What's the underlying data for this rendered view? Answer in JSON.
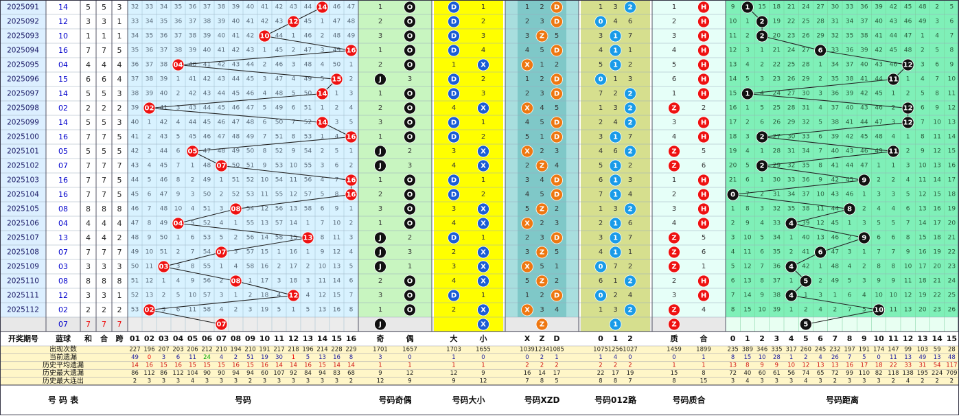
{
  "colors": {
    "issue_bg": "#dcefff",
    "issue_text": "#1a1a66",
    "blue_text": "#0000cc",
    "red_ball": "#ee1111",
    "black_ball": "#111111",
    "blue_ball": "#1a5cd6",
    "orange_ball": "#ee7711",
    "cyan_ball": "#1a9be8",
    "hop_bg": "#d8f2ff",
    "parity_bg": "#c8f5c0",
    "size_bg": "#ffff00",
    "xzd_bg": "#7fc8c8",
    "road_bg": "#d6df8e",
    "prime_bg": "#e6fff8",
    "dist_bg": "#7ff0b8",
    "stat_bg": "#fff6c8"
  },
  "periods": [
    "2025091",
    "2025092",
    "2025093",
    "2025094",
    "2025095",
    "2025096",
    "2025097",
    "2025098",
    "2025099",
    "2025100",
    "2025101",
    "2025102",
    "2025103",
    "2025104",
    "2025105",
    "2025106",
    "2025107",
    "2025108",
    "2025109",
    "2025110",
    "2025111",
    "2025112"
  ],
  "blue_balls": [
    "14",
    "12",
    "10",
    "16",
    "04",
    "15",
    "14",
    "02",
    "14",
    "16",
    "05",
    "07",
    "16",
    "16",
    "08",
    "04",
    "13",
    "07",
    "03",
    "08",
    "12",
    "02"
  ],
  "he": [
    5,
    3,
    1,
    7,
    4,
    6,
    5,
    2,
    5,
    7,
    5,
    7,
    7,
    7,
    8,
    4,
    4,
    7,
    3,
    8,
    3,
    2
  ],
  "hezhi": [
    5,
    3,
    1,
    7,
    4,
    6,
    5,
    2,
    5,
    7,
    5,
    7,
    7,
    7,
    8,
    4,
    4,
    7,
    3,
    8,
    3,
    2
  ],
  "kua": [
    3,
    1,
    1,
    5,
    4,
    4,
    3,
    2,
    3,
    5,
    5,
    7,
    5,
    5,
    8,
    4,
    2,
    7,
    3,
    8,
    1,
    2
  ],
  "forecast": {
    "blue": "07",
    "he": "7",
    "hezhi": "7",
    "kua": "7"
  },
  "hop_numbers": [
    "01",
    "02",
    "03",
    "04",
    "05",
    "06",
    "07",
    "08",
    "09",
    "10",
    "11",
    "12",
    "13",
    "14",
    "15",
    "16"
  ],
  "dist_numbers": [
    "0",
    "1",
    "2",
    "3",
    "4",
    "5",
    "6",
    "7",
    "8",
    "9",
    "10",
    "11",
    "12",
    "13",
    "14",
    "15"
  ],
  "headers": {
    "period": "开奖期号",
    "blue": "蓝球",
    "he": "和",
    "hezhi": "合",
    "kua": "跨",
    "odd": "奇",
    "even": "偶",
    "big": "大",
    "small": "小",
    "x": "X",
    "z": "Z",
    "d": "D",
    "r0": "0",
    "r1": "1",
    "r2": "2",
    "prime": "质",
    "composite": "合"
  },
  "footer": {
    "table": "号  码  表",
    "hop": "号码",
    "parity": "号码奇偶",
    "size": "号码大小",
    "xzd": "号码XZD",
    "road": "号码012路",
    "prime": "号码质合",
    "distance": "号码距离"
  },
  "stats": [
    {
      "label": "出现次数",
      "hop": [
        227,
        196,
        207,
        203,
        206,
        212,
        210,
        194,
        210,
        191,
        217,
        218,
        196,
        214,
        228,
        229
      ],
      "parity": [
        1701,
        1657
      ],
      "size": [
        1703,
        1655
      ],
      "xzd": [
        1039,
        1234,
        1085
      ],
      "road": [
        1075,
        1256,
        1027
      ],
      "prime": [
        1459,
        1899
      ],
      "dist": [
        235,
        389,
        346,
        335,
        317,
        260,
        245,
        232,
        197,
        191,
        174,
        147,
        99,
        103,
        59,
        28
      ]
    },
    {
      "label": "当前遗漏",
      "hop": [
        49,
        0,
        3,
        6,
        11,
        24,
        4,
        2,
        51,
        19,
        30,
        1,
        5,
        13,
        16,
        8
      ],
      "parity": [
        3,
        0
      ],
      "size": [
        1,
        0
      ],
      "xzd": [
        0,
        2,
        1
      ],
      "road": [
        1,
        4,
        0
      ],
      "prime": [
        0,
        1
      ],
      "dist": [
        8,
        15,
        10,
        28,
        1,
        2,
        4,
        26,
        7,
        5,
        0,
        11,
        13,
        49,
        13,
        48
      ]
    },
    {
      "label": "历史平均遗漏",
      "hop": [
        14,
        16,
        15,
        16,
        15,
        15,
        15,
        16,
        15,
        16,
        14,
        14,
        16,
        15,
        14,
        14
      ],
      "parity": [
        1,
        1
      ],
      "size": [
        1,
        1
      ],
      "xzd": [
        2,
        2,
        2
      ],
      "road": [
        2,
        2,
        2
      ],
      "prime": [
        1,
        1
      ],
      "dist": [
        13,
        8,
        9,
        9,
        10,
        12,
        13,
        13,
        16,
        17,
        18,
        22,
        33,
        31,
        54,
        117
      ]
    },
    {
      "label": "历史最大遗漏",
      "hop": [
        86,
        112,
        86,
        112,
        104,
        90,
        90,
        94,
        94,
        60,
        107,
        92,
        84,
        94,
        83,
        68
      ],
      "parity": [
        9,
        12
      ],
      "size": [
        12,
        9
      ],
      "xzd": [
        16,
        14,
        17
      ],
      "road": [
        22,
        17,
        19
      ],
      "prime": [
        15,
        8
      ],
      "dist": [
        72,
        40,
        60,
        61,
        56,
        74,
        65,
        72,
        99,
        110,
        82,
        118,
        138,
        195,
        224,
        709
      ]
    },
    {
      "label": "历史最大连出",
      "hop": [
        2,
        3,
        3,
        3,
        4,
        3,
        3,
        3,
        2,
        3,
        3,
        3,
        3,
        3,
        3,
        2
      ],
      "parity": [
        12,
        9
      ],
      "size": [
        9,
        12
      ],
      "xzd": [
        7,
        8,
        5
      ],
      "road": [
        8,
        8,
        7
      ],
      "prime": [
        8,
        15
      ],
      "dist": [
        3,
        4,
        3,
        3,
        3,
        4,
        3,
        2,
        3,
        3,
        3,
        2,
        4,
        2,
        2,
        2
      ]
    }
  ],
  "chart_data": {
    "type": "table",
    "title": "",
    "series": [
      {
        "x": [
          "2025091",
          "2025092",
          "2025093",
          "2025094",
          "2025095",
          "2025096",
          "2025097",
          "2025098",
          "2025099",
          "2025100",
          "2025101",
          "2025102",
          "2025103",
          "2025104",
          "2025105",
          "2025106",
          "2025107",
          "2025108",
          "2025109",
          "2025110",
          "2025111",
          "2025112"
        ],
        "values": [
          14,
          12,
          10,
          16,
          4,
          15,
          14,
          2,
          14,
          16,
          5,
          7,
          16,
          16,
          8,
          4,
          13,
          7,
          3,
          8,
          12,
          2
        ]
      }
    ],
    "distance_values": [
      1,
      2,
      2,
      6,
      12,
      11,
      1,
      12,
      12,
      2,
      11,
      2,
      9,
      0,
      8,
      4,
      9,
      6,
      4,
      5,
      4,
      10
    ],
    "forecast_blue": 7,
    "forecast_distance": 5,
    "grid": true
  }
}
